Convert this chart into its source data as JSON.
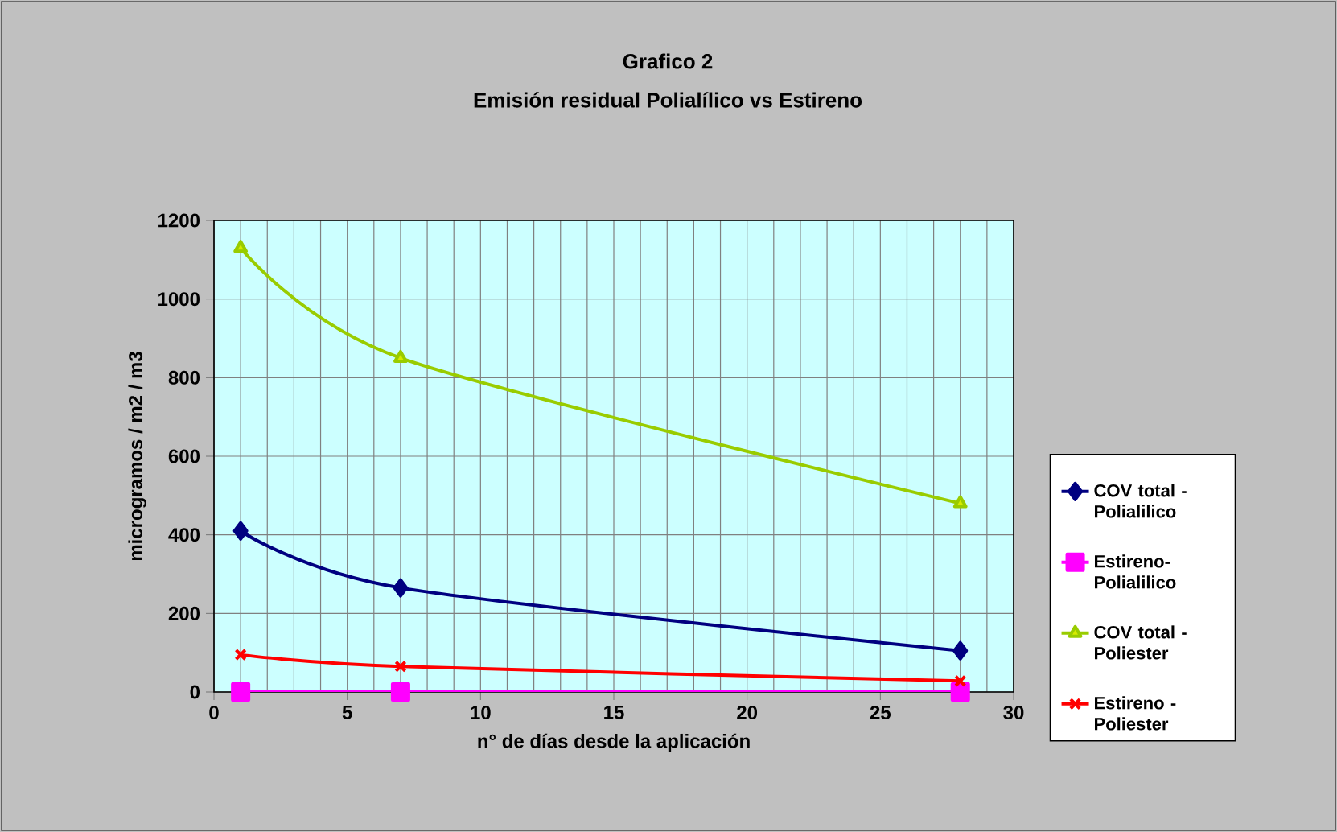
{
  "chart_data": {
    "type": "line",
    "title": "Grafico 2",
    "subtitle": "Emisión residual Polialílico vs Estireno",
    "xlabel": "n° de días desde la aplicación",
    "ylabel": "microgramos / m2 / m3",
    "x": [
      1,
      7,
      28
    ],
    "series": [
      {
        "name": "COV total - Polialilico",
        "color": "#000080",
        "marker": "diamond",
        "values": [
          410,
          265,
          105
        ]
      },
      {
        "name": "Estireno-Polialilico",
        "color": "#ff00ff",
        "marker": "square",
        "values": [
          0,
          0,
          0
        ]
      },
      {
        "name": "COV total - Poliester",
        "color": "#99cc00",
        "marker": "triangle",
        "values": [
          1130,
          850,
          480
        ]
      },
      {
        "name": "Estireno - Poliester",
        "color": "#ff0000",
        "marker": "cross",
        "values": [
          95,
          65,
          28
        ]
      }
    ],
    "xlim": [
      0,
      30
    ],
    "xticks": [
      0,
      5,
      10,
      15,
      20,
      25,
      30
    ],
    "ylim": [
      0,
      1200
    ],
    "yticks": [
      0,
      200,
      400,
      600,
      800,
      1000,
      1200
    ],
    "grid": true,
    "legend": "right",
    "line_style": "solid"
  }
}
